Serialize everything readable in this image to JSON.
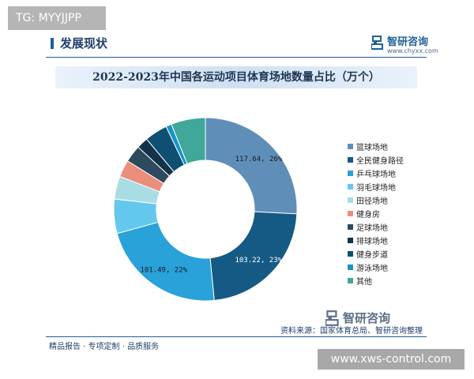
{
  "overlay_tag": "TG: MYYJJPP",
  "section_title": "发展现状",
  "brand": {
    "name": "智研咨询",
    "url": "www.chyxx.com"
  },
  "footer": {
    "slogan": "精品报告 · 专项定制 · 品质服务",
    "source": "资料来源：国家体育总局、智研咨询整理",
    "brand": "智研咨询"
  },
  "site_tag": "www.xws-control.com",
  "colors": {
    "accent": "#1e5f99",
    "title_band": "#cfe0f3"
  },
  "chart_data": {
    "type": "pie",
    "donut": true,
    "title": "2022-2023年中国各运动项目体育场地数量占比（万个）",
    "legend_position": "right",
    "series": [
      {
        "name": "篮球场地",
        "value": 117.64,
        "share": 26,
        "label": "117.64, 26%",
        "color": "#5f8fb8"
      },
      {
        "name": "全民健身路径",
        "value": 103.22,
        "share": 23,
        "label": "103.22, 23%",
        "color": "#155a85"
      },
      {
        "name": "乒乓球场地",
        "value": 101.49,
        "share": 22,
        "label": "101.49, 22%",
        "color": "#29a1d9"
      },
      {
        "name": "羽毛球场地",
        "value": 27.6,
        "share": 6,
        "color": "#64c8ee"
      },
      {
        "name": "田径场地",
        "value": 18.4,
        "share": 4,
        "color": "#a8dde3"
      },
      {
        "name": "健身房",
        "value": 13.8,
        "share": 3,
        "color": "#ec8e7c"
      },
      {
        "name": "足球场地",
        "value": 13.8,
        "share": 3,
        "color": "#2d4a5e"
      },
      {
        "name": "排球场地",
        "value": 9.2,
        "share": 2,
        "color": "#14324a"
      },
      {
        "name": "健身步道",
        "value": 18.4,
        "share": 4,
        "color": "#0e4f72"
      },
      {
        "name": "游泳场地",
        "value": 4.6,
        "share": 1,
        "color": "#1694c9"
      },
      {
        "name": "其他",
        "value": 27.6,
        "share": 6,
        "color": "#3fa89a"
      }
    ]
  }
}
